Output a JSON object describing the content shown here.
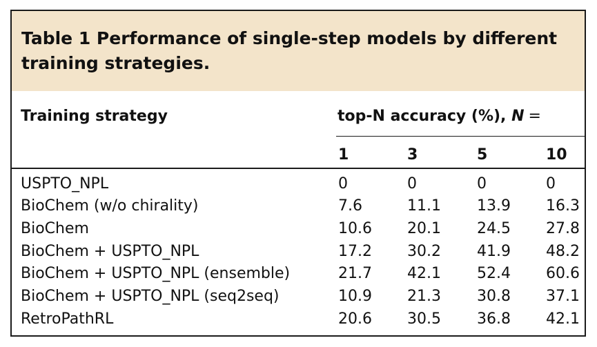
{
  "caption": "Table 1 Performance of single-step models by different training strategies.",
  "table": {
    "row_header": "Training strategy",
    "group_header": "top-N accuracy (%), ",
    "group_header_var": "N",
    "group_header_eq": "=",
    "columns": [
      "1",
      "3",
      "5",
      "10"
    ],
    "rows": [
      {
        "strategy": "USPTO_NPL",
        "values": [
          "0",
          "0",
          "0",
          "0"
        ]
      },
      {
        "strategy": "BioChem (w/o chirality)",
        "values": [
          "7.6",
          "11.1",
          "13.9",
          "16.3"
        ]
      },
      {
        "strategy": "BioChem",
        "values": [
          "10.6",
          "20.1",
          "24.5",
          "27.8"
        ]
      },
      {
        "strategy": "BioChem + USPTO_NPL",
        "values": [
          "17.2",
          "30.2",
          "41.9",
          "48.2"
        ]
      },
      {
        "strategy": "BioChem + USPTO_NPL (ensemble)",
        "values": [
          "21.7",
          "42.1",
          "52.4",
          "60.6"
        ]
      },
      {
        "strategy": "BioChem + USPTO_NPL (seq2seq)",
        "values": [
          "10.9",
          "21.3",
          "30.8",
          "37.1"
        ]
      },
      {
        "strategy": "RetroPathRL",
        "values": [
          "20.6",
          "30.5",
          "36.8",
          "42.1"
        ]
      }
    ]
  }
}
